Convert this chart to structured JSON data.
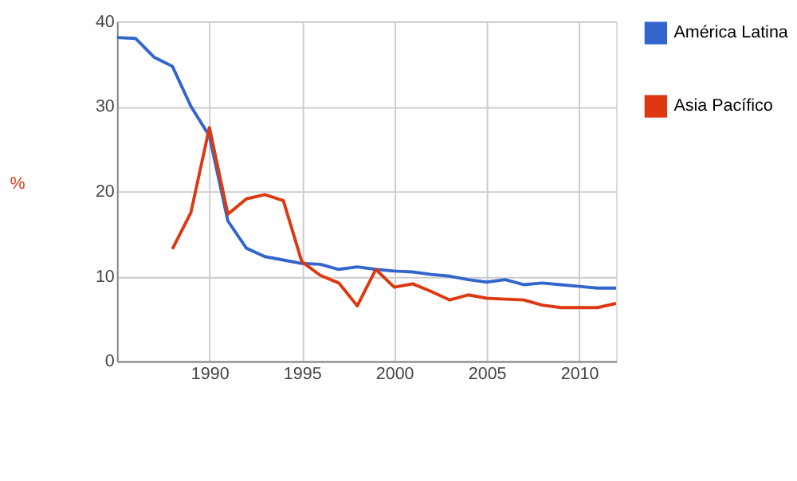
{
  "chart_data": {
    "type": "line",
    "ylabel": "%",
    "x": [
      1985,
      1986,
      1987,
      1988,
      1989,
      1990,
      1991,
      1992,
      1993,
      1994,
      1995,
      1996,
      1997,
      1998,
      1999,
      2000,
      2001,
      2002,
      2003,
      2004,
      2005,
      2006,
      2007,
      2008,
      2009,
      2010,
      2011,
      2012
    ],
    "series": [
      {
        "name": "América Latina",
        "color": "#3366cc",
        "values": [
          38.1,
          38.0,
          35.8,
          34.7,
          30.0,
          26.5,
          16.5,
          13.3,
          12.3,
          11.9,
          11.5,
          11.4,
          10.8,
          11.1,
          10.8,
          10.6,
          10.5,
          10.2,
          10.0,
          9.6,
          9.3,
          9.6,
          9.0,
          9.2,
          9.0,
          8.8,
          8.6,
          8.6
        ]
      },
      {
        "name": "Asia Pacífico",
        "color": "#dc3912",
        "values": [
          null,
          null,
          null,
          13.2,
          17.5,
          27.5,
          17.3,
          19.1,
          19.6,
          18.9,
          11.7,
          10.1,
          9.2,
          6.5,
          10.8,
          8.7,
          9.1,
          8.2,
          7.2,
          7.8,
          7.4,
          7.3,
          7.2,
          6.6,
          6.3,
          6.3,
          6.3,
          6.8
        ]
      }
    ],
    "xlim": [
      1985,
      2012
    ],
    "xticks": [
      1990,
      1995,
      2000,
      2005,
      2010
    ],
    "ylim": [
      0,
      40
    ],
    "yticks": [
      0,
      10,
      20,
      30,
      40
    ],
    "grid": true,
    "legend": "top right"
  }
}
